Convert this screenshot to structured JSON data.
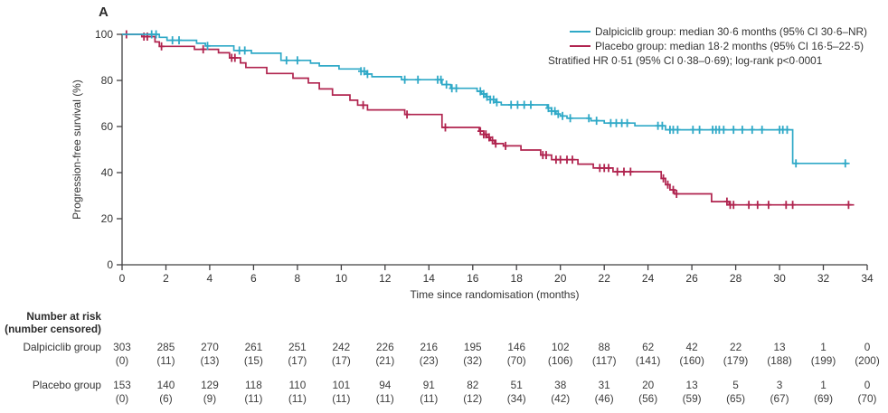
{
  "panel_label": "A",
  "colors": {
    "dalpiciclib": "#2fa9c7",
    "placebo": "#b0244f",
    "axis": "#414042",
    "text": "#333333"
  },
  "legend": {
    "position": "top-right",
    "entries": [
      {
        "name": "Dalpiciclib group",
        "label": "Dalpiciclib group: median 30·6 months (95% CI 30·6–NR)",
        "color": "#2fa9c7"
      },
      {
        "name": "Placebo group",
        "label": "Placebo group: median 18·2 months (95% CI 16·5–22·5)",
        "color": "#b0244f"
      }
    ],
    "note": "Stratified HR 0·51 (95% CI 0·38–0·69); log-rank p<0·0001"
  },
  "chart_data": {
    "type": "line",
    "subtype": "kaplan-meier-step",
    "title": "",
    "xlabel": "Time since randomisation (months)",
    "ylabel": "Progression-free survival (%)",
    "xlim": [
      0,
      34
    ],
    "ylim": [
      0,
      100
    ],
    "xticks": [
      0,
      2,
      4,
      6,
      8,
      10,
      12,
      14,
      16,
      18,
      20,
      22,
      24,
      26,
      28,
      30,
      32,
      34
    ],
    "yticks": [
      0,
      20,
      40,
      60,
      80,
      100
    ],
    "grid": false,
    "legend_position": "top-right",
    "series": [
      {
        "name": "Dalpiciclib group",
        "color": "#2fa9c7",
        "median_months": "30·6",
        "ci_95": "30·6–NR",
        "end": 33.2,
        "steps": [
          [
            0,
            100
          ],
          [
            1.7,
            98.7
          ],
          [
            2.05,
            97.4
          ],
          [
            3.4,
            96.1
          ],
          [
            3.8,
            95
          ],
          [
            5.1,
            93
          ],
          [
            5.9,
            91.8
          ],
          [
            7.25,
            88.7
          ],
          [
            8.6,
            87.5
          ],
          [
            9.0,
            86.3
          ],
          [
            9.9,
            85
          ],
          [
            10.9,
            84
          ],
          [
            11.15,
            82.8
          ],
          [
            11.4,
            81.6
          ],
          [
            12.75,
            80.3
          ],
          [
            14.6,
            78.2
          ],
          [
            15.0,
            76.6
          ],
          [
            16.2,
            75.3
          ],
          [
            16.4,
            74.1
          ],
          [
            16.6,
            72.9
          ],
          [
            16.8,
            71.7
          ],
          [
            17.05,
            70.5
          ],
          [
            17.3,
            69.4
          ],
          [
            19.4,
            68
          ],
          [
            19.6,
            66.7
          ],
          [
            19.8,
            65.4
          ],
          [
            20.0,
            64.6
          ],
          [
            20.3,
            63.6
          ],
          [
            21.4,
            62.5
          ],
          [
            22.0,
            61.5
          ],
          [
            23.4,
            60.3
          ],
          [
            24.8,
            58.6
          ],
          [
            30.6,
            44
          ]
        ],
        "censors": [
          1.35,
          1.55,
          2.3,
          2.6,
          3.9,
          5.35,
          5.6,
          7.5,
          8.0,
          10.9,
          11.05,
          11.2,
          12.9,
          13.5,
          14.4,
          14.55,
          14.8,
          15.05,
          15.25,
          16.35,
          16.5,
          16.65,
          16.8,
          16.95,
          17.1,
          17.75,
          18.05,
          18.35,
          18.65,
          19.45,
          19.6,
          19.75,
          19.9,
          20.1,
          20.45,
          21.3,
          21.65,
          22.3,
          22.55,
          22.8,
          23.05,
          24.45,
          24.65,
          25.0,
          25.15,
          25.35,
          26.05,
          26.35,
          26.95,
          27.1,
          27.25,
          27.45,
          27.9,
          28.3,
          28.75,
          29.2,
          30.0,
          30.15,
          30.35,
          30.75,
          33.0
        ]
      },
      {
        "name": "Placebo group",
        "color": "#b0244f",
        "median_months": "18·2",
        "ci_95": "16·5–22·5",
        "end": 33.4,
        "steps": [
          [
            0,
            100
          ],
          [
            0.9,
            99
          ],
          [
            1.5,
            96.7
          ],
          [
            1.7,
            94.8
          ],
          [
            3.3,
            93.5
          ],
          [
            4.4,
            92
          ],
          [
            4.9,
            89.8
          ],
          [
            5.4,
            87.6
          ],
          [
            5.65,
            85.6
          ],
          [
            6.6,
            83
          ],
          [
            7.8,
            81
          ],
          [
            8.5,
            78.9
          ],
          [
            9.0,
            76.3
          ],
          [
            9.6,
            73.7
          ],
          [
            10.4,
            71.4
          ],
          [
            10.75,
            69.3
          ],
          [
            11.2,
            67.2
          ],
          [
            12.9,
            65.2
          ],
          [
            14.6,
            59.6
          ],
          [
            16.3,
            58
          ],
          [
            16.5,
            56.6
          ],
          [
            16.65,
            55.3
          ],
          [
            16.8,
            54
          ],
          [
            17.0,
            52.6
          ],
          [
            17.4,
            51.6
          ],
          [
            18.2,
            49.8
          ],
          [
            19.1,
            47.6
          ],
          [
            19.6,
            45.6
          ],
          [
            20.8,
            43.7
          ],
          [
            21.5,
            42
          ],
          [
            22.4,
            40.4
          ],
          [
            24.6,
            37.5
          ],
          [
            24.8,
            34.8
          ],
          [
            25.0,
            32.5
          ],
          [
            25.2,
            30.8
          ],
          [
            26.9,
            27.4
          ],
          [
            27.7,
            26
          ]
        ],
        "censors": [
          0.2,
          1.0,
          1.15,
          1.8,
          3.7,
          5.0,
          5.15,
          11.0,
          13.0,
          14.75,
          16.35,
          16.5,
          16.6,
          16.75,
          16.9,
          17.05,
          17.5,
          19.2,
          19.35,
          19.8,
          20.0,
          20.3,
          20.55,
          21.8,
          22.0,
          22.2,
          22.6,
          22.9,
          23.2,
          24.7,
          24.9,
          25.15,
          25.3,
          27.6,
          27.75,
          27.9,
          28.6,
          29.0,
          29.5,
          30.3,
          30.6,
          33.15
        ]
      }
    ],
    "annotations": [
      "Stratified HR 0·51 (95% CI 0·38–0·69); log-rank p<0·0001"
    ]
  },
  "risk_table": {
    "header_line1": "Number at risk",
    "header_line2": "(number censored)",
    "months": [
      0,
      2,
      4,
      6,
      8,
      10,
      12,
      14,
      16,
      18,
      20,
      22,
      24,
      26,
      28,
      30,
      32,
      34
    ],
    "rows": [
      {
        "label": "Dalpiciclib group",
        "at_risk": [
          303,
          285,
          270,
          261,
          251,
          242,
          226,
          216,
          195,
          146,
          102,
          88,
          62,
          42,
          22,
          13,
          1,
          0
        ],
        "censored": [
          0,
          11,
          13,
          15,
          17,
          17,
          21,
          23,
          32,
          70,
          106,
          117,
          141,
          160,
          179,
          188,
          199,
          200
        ]
      },
      {
        "label": "Placebo group",
        "at_risk": [
          153,
          140,
          129,
          118,
          110,
          101,
          94,
          91,
          82,
          51,
          38,
          31,
          20,
          13,
          5,
          3,
          1,
          0
        ],
        "censored": [
          0,
          6,
          9,
          11,
          11,
          11,
          11,
          11,
          12,
          34,
          42,
          46,
          56,
          59,
          65,
          67,
          69,
          70
        ]
      }
    ]
  }
}
